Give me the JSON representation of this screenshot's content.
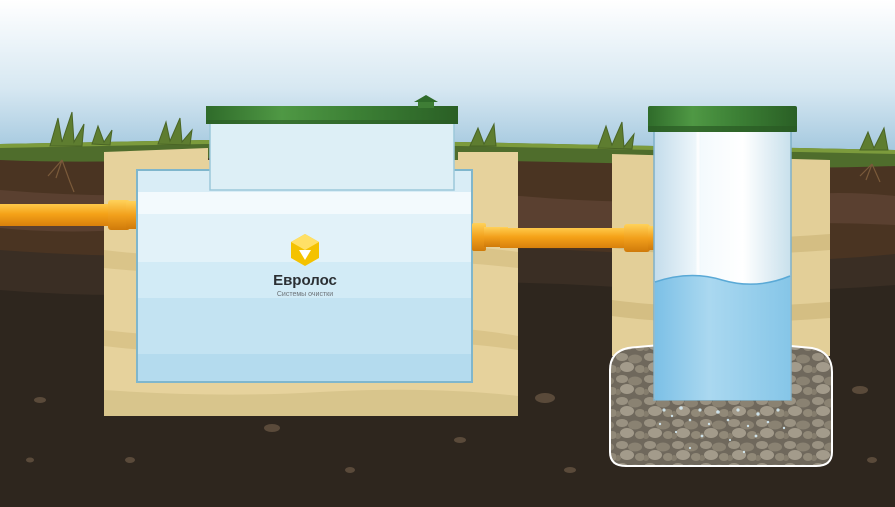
{
  "brand": {
    "name": "Евролос",
    "tagline": "Системы очистки"
  },
  "colors": {
    "sky_top": "#ffffff",
    "sky_bottom": "#9dc4dc",
    "grass": "#4f6d2c",
    "soil_dark": "#2e261e",
    "soil_brown": "#4a3422",
    "sand": "#e6d29c",
    "tank_water": "#b9dff0",
    "lid_green": "#3e7d35",
    "pipe_orange": "#f5a218",
    "gravel": "#8a8070"
  }
}
